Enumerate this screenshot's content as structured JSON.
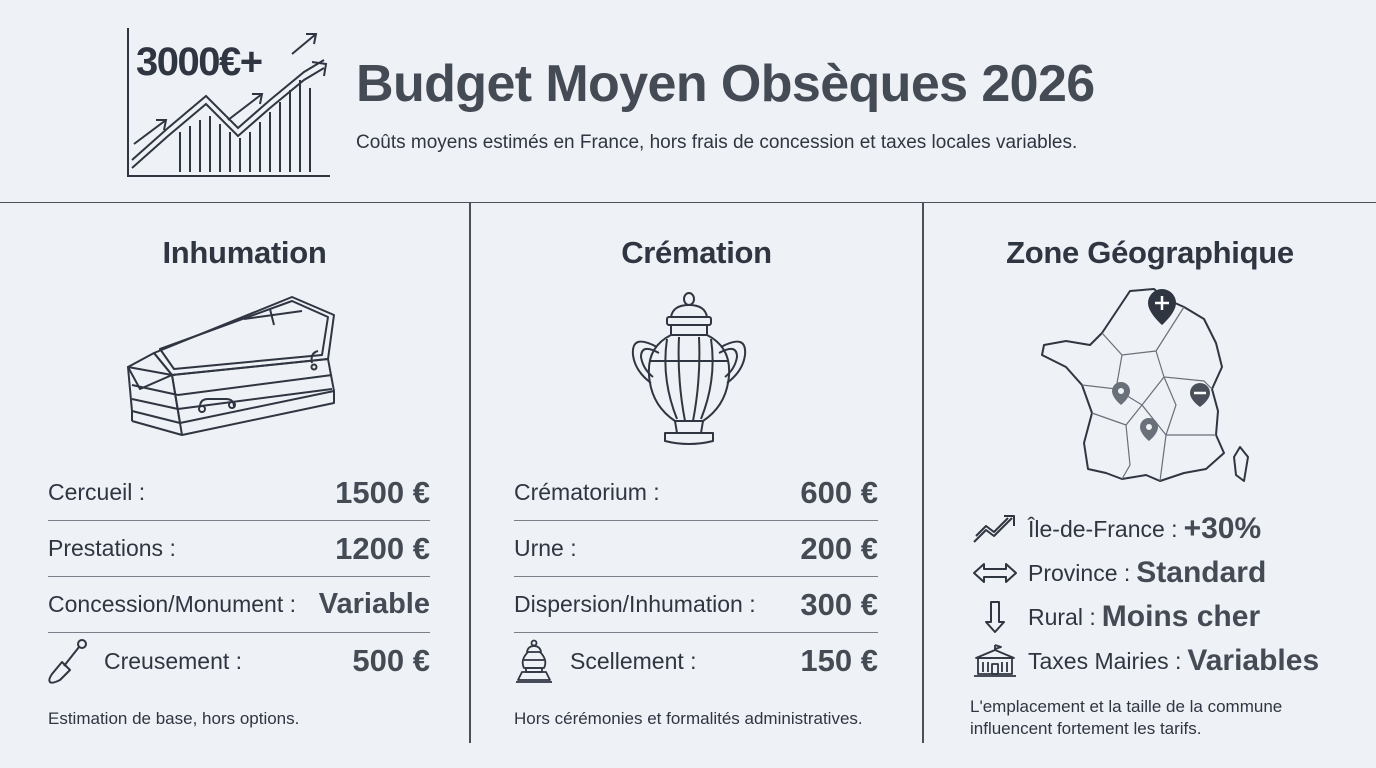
{
  "header": {
    "logo_text": "3000€+",
    "title": "Budget Moyen Obsèques 2026",
    "subtitle": "Coûts moyens estimés en France, hors frais de concession et taxes locales variables."
  },
  "inhumation": {
    "title": "Inhumation",
    "rows": [
      {
        "label": "Cercueil :",
        "value": "1500 €"
      },
      {
        "label": "Prestations :",
        "value": "1200 €"
      },
      {
        "label": "Concession/Monument :",
        "value": "Variable"
      },
      {
        "label": "Creusement :",
        "value": "500 €",
        "icon": "shovel-icon"
      }
    ],
    "note": "Estimation de base, hors options."
  },
  "cremation": {
    "title": "Crémation",
    "rows": [
      {
        "label": "Crématorium :",
        "value": "600 €"
      },
      {
        "label": "Urne :",
        "value": "200 €"
      },
      {
        "label": "Dispersion/Inhumation :",
        "value": "300 €"
      },
      {
        "label": "Scellement :",
        "value": "150 €",
        "icon": "urn-icon"
      }
    ],
    "note": "Hors cérémonies et formalités administratives."
  },
  "zone": {
    "title": "Zone Géographique",
    "rows": [
      {
        "label": "Île-de-France :",
        "value": "+30%",
        "icon": "trend-up-icon"
      },
      {
        "label": "Province :",
        "value": "Standard",
        "icon": "double-arrow-icon"
      },
      {
        "label": "Rural :",
        "value": "Moins cher",
        "icon": "arrow-down-icon"
      },
      {
        "label": "Taxes Mairies :",
        "value": "Variables",
        "icon": "town-hall-icon"
      }
    ],
    "note_line1": "L'emplacement et la taille de la commune",
    "note_line2": "influencent fortement les tarifs."
  },
  "colors": {
    "background": "#eef1f5",
    "text": "#2f3541",
    "value_text": "#454b55",
    "line": "#4a505a"
  }
}
